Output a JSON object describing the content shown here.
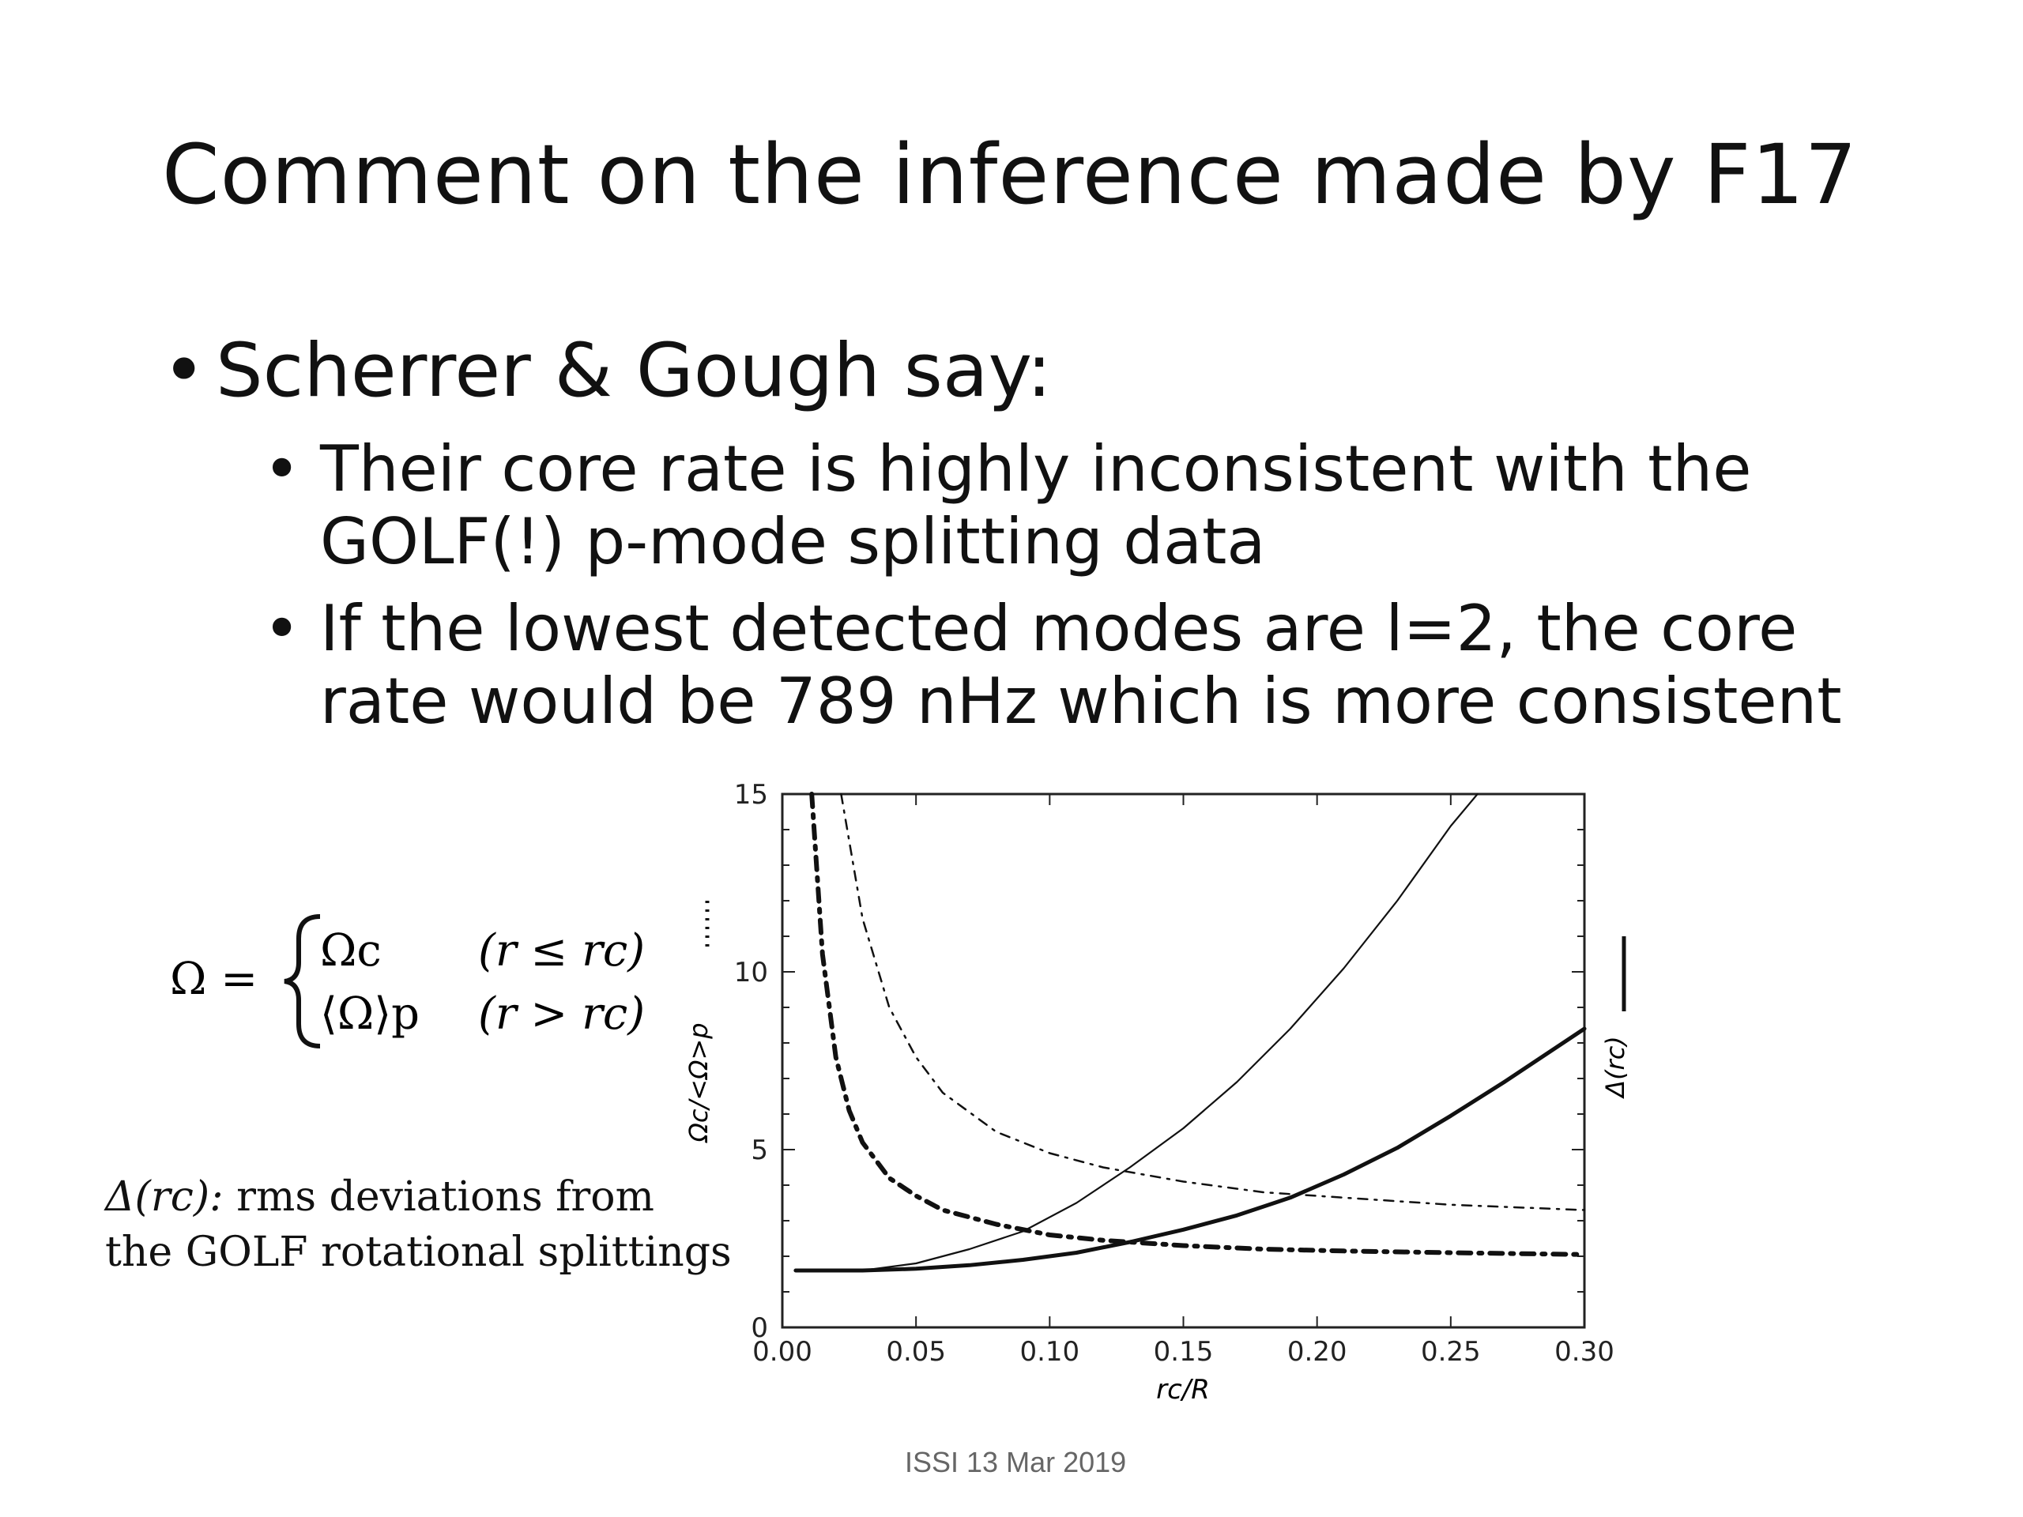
{
  "slide": {
    "title": "Comment on the inference made by F17",
    "bullet_main": "Scherrer & Gough say:",
    "sub_bullets": [
      {
        "line1": "Their core rate is highly inconsistent with the",
        "line2": "GOLF(!) p-mode splitting data"
      },
      {
        "line1": "If the lowest detected modes are l=2, the core",
        "line2": "rate would be 789 nHz which is more consistent"
      }
    ],
    "footer": "ISSI 13 Mar 2019"
  },
  "equation": {
    "lhs": "Ω =",
    "row1_value": "Ωc",
    "row1_condition": "(r ≤ rc)",
    "row2_value": "⟨Ω⟩p",
    "row2_condition": "(r > rc)"
  },
  "delta_note": {
    "symbol": "Δ(rc):",
    "line1_rest": "rms deviations from",
    "line2": "the GOLF rotational splittings"
  },
  "chart_data": {
    "type": "line",
    "xlabel": "rc/R",
    "ylabel_left": "Ωc/<Ω>p",
    "ylabel_right": "Δ(rc)",
    "xlim": [
      0.0,
      0.3
    ],
    "ylim": [
      0,
      15
    ],
    "x_ticks": [
      "0.00",
      "0.05",
      "0.10",
      "0.15",
      "0.20",
      "0.25",
      "0.30"
    ],
    "y_ticks": [
      "0",
      "5",
      "10",
      "15"
    ],
    "grid": false,
    "series": [
      {
        "style": "thin-solid",
        "x": [
          0.005,
          0.03,
          0.05,
          0.07,
          0.09,
          0.11,
          0.13,
          0.15,
          0.17,
          0.19,
          0.21,
          0.23,
          0.25,
          0.26
        ],
        "y": [
          1.6,
          1.6,
          1.8,
          2.2,
          2.7,
          3.5,
          4.5,
          5.6,
          6.9,
          8.4,
          10.1,
          12.0,
          14.1,
          15.0
        ]
      },
      {
        "style": "thick-solid",
        "x": [
          0.005,
          0.03,
          0.05,
          0.07,
          0.09,
          0.11,
          0.13,
          0.15,
          0.17,
          0.19,
          0.21,
          0.23,
          0.25,
          0.27,
          0.3
        ],
        "y": [
          1.6,
          1.6,
          1.65,
          1.75,
          1.9,
          2.1,
          2.4,
          2.75,
          3.15,
          3.65,
          4.3,
          5.05,
          5.95,
          6.9,
          8.4
        ]
      },
      {
        "style": "thick-dash-dot",
        "x": [
          0.011,
          0.015,
          0.02,
          0.025,
          0.03,
          0.04,
          0.05,
          0.06,
          0.08,
          0.1,
          0.12,
          0.15,
          0.18,
          0.21,
          0.25,
          0.3
        ],
        "y": [
          15.0,
          10.5,
          7.6,
          6.1,
          5.2,
          4.2,
          3.7,
          3.3,
          2.9,
          2.6,
          2.45,
          2.3,
          2.2,
          2.15,
          2.1,
          2.05
        ]
      },
      {
        "style": "thin-dash-dot",
        "x": [
          0.022,
          0.03,
          0.04,
          0.05,
          0.06,
          0.08,
          0.1,
          0.12,
          0.15,
          0.18,
          0.21,
          0.25,
          0.3
        ],
        "y": [
          15.0,
          11.5,
          9.0,
          7.6,
          6.6,
          5.5,
          4.9,
          4.5,
          4.1,
          3.8,
          3.65,
          3.45,
          3.3
        ]
      }
    ]
  }
}
